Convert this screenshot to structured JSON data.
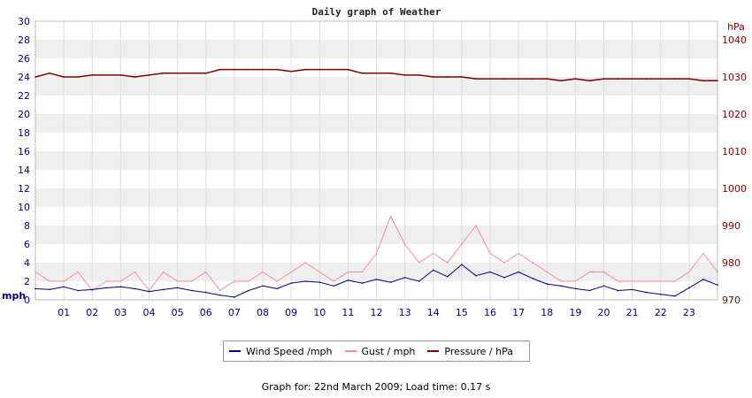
{
  "chart_data": {
    "type": "line",
    "title": "Daily graph of Weather",
    "left_axis": {
      "unit": "mph",
      "range": [
        0,
        30
      ],
      "ticks": [
        0,
        2,
        4,
        6,
        8,
        10,
        12,
        14,
        16,
        18,
        20,
        22,
        24,
        26,
        28,
        30
      ]
    },
    "right_axis": {
      "unit": "hPa",
      "range": [
        970,
        1045
      ],
      "ticks": [
        970,
        980,
        990,
        1000,
        1010,
        1020,
        1030,
        1040
      ]
    },
    "x_axis": {
      "unit": "hour",
      "range": [
        0,
        24
      ],
      "tick_labels": [
        "01",
        "02",
        "03",
        "04",
        "05",
        "06",
        "07",
        "08",
        "09",
        "10",
        "11",
        "12",
        "13",
        "14",
        "15",
        "16",
        "17",
        "18",
        "19",
        "20",
        "21",
        "22",
        "23"
      ]
    },
    "grid": true,
    "legend_position": "bottom-center",
    "series": [
      {
        "name": "Wind Speed /mph",
        "color": "#000080",
        "axis": "left",
        "x": [
          0,
          0.5,
          1,
          1.5,
          2,
          2.5,
          3,
          3.5,
          4,
          4.5,
          5,
          5.5,
          6,
          6.5,
          7,
          7.5,
          8,
          8.5,
          9,
          9.5,
          10,
          10.5,
          11,
          11.5,
          12,
          12.5,
          13,
          13.5,
          14,
          14.5,
          15,
          15.5,
          16,
          16.5,
          17,
          17.5,
          18,
          18.5,
          19,
          19.5,
          20,
          20.5,
          21,
          21.5,
          22,
          22.5,
          23,
          23.5,
          24
        ],
        "values": [
          1.2,
          1.1,
          1.4,
          1.0,
          1.1,
          1.3,
          1.4,
          1.2,
          0.9,
          1.1,
          1.3,
          1.0,
          0.8,
          0.5,
          0.3,
          1.0,
          1.5,
          1.2,
          1.8,
          2.0,
          1.9,
          1.5,
          2.1,
          1.8,
          2.2,
          1.9,
          2.4,
          2.0,
          3.2,
          2.5,
          3.8,
          2.6,
          3.0,
          2.4,
          3.0,
          2.3,
          1.7,
          1.5,
          1.2,
          1.0,
          1.5,
          1.0,
          1.1,
          0.8,
          0.6,
          0.4,
          1.3,
          2.2,
          1.6
        ]
      },
      {
        "name": "Gust / mph",
        "color": "#ff80a8",
        "axis": "left",
        "x": [
          0,
          0.5,
          1,
          1.5,
          2,
          2.5,
          3,
          3.5,
          4,
          4.5,
          5,
          5.5,
          6,
          6.5,
          7,
          7.5,
          8,
          8.5,
          9,
          9.5,
          10,
          10.5,
          11,
          11.5,
          12,
          12.5,
          13,
          13.5,
          14,
          14.5,
          15,
          15.5,
          16,
          16.5,
          17,
          17.5,
          18,
          18.5,
          19,
          19.5,
          20,
          20.5,
          21,
          21.5,
          22,
          22.5,
          23,
          23.5,
          24
        ],
        "values": [
          3,
          2,
          2,
          3,
          1,
          2,
          2,
          3,
          1,
          3,
          2,
          2,
          3,
          1,
          2,
          2,
          3,
          2,
          3,
          4,
          3,
          2,
          3,
          3,
          5,
          9,
          6,
          4,
          5,
          4,
          6,
          8,
          5,
          4,
          5,
          4,
          3,
          2,
          2,
          3,
          3,
          2,
          2,
          2,
          2,
          2,
          3,
          5,
          3
        ]
      },
      {
        "name": "Pressure / hPa",
        "color": "#800000",
        "axis": "right",
        "x": [
          0,
          0.5,
          1,
          1.5,
          2,
          2.5,
          3,
          3.5,
          4,
          4.5,
          5,
          5.5,
          6,
          6.5,
          7,
          7.5,
          8,
          8.5,
          9,
          9.5,
          10,
          10.5,
          11,
          11.5,
          12,
          12.5,
          13,
          13.5,
          14,
          14.5,
          15,
          15.5,
          16,
          16.5,
          17,
          17.5,
          18,
          18.5,
          19,
          19.5,
          20,
          20.5,
          21,
          21.5,
          22,
          22.5,
          23,
          23.5,
          24
        ],
        "values": [
          1030,
          1031,
          1030,
          1030,
          1030.5,
          1030.5,
          1030.5,
          1030,
          1030.5,
          1031,
          1031,
          1031,
          1031,
          1032,
          1032,
          1032,
          1032,
          1032,
          1031.5,
          1032,
          1032,
          1032,
          1032,
          1031,
          1031,
          1031,
          1030.5,
          1030.5,
          1030,
          1030,
          1030,
          1029.5,
          1029.5,
          1029.5,
          1029.5,
          1029.5,
          1029.5,
          1029,
          1029.5,
          1029,
          1029.5,
          1029.5,
          1029.5,
          1029.5,
          1029.5,
          1029.5,
          1029.5,
          1029,
          1029
        ]
      }
    ]
  },
  "footer_text": "Graph for: 22nd March 2009; Load time: 0.17 s"
}
